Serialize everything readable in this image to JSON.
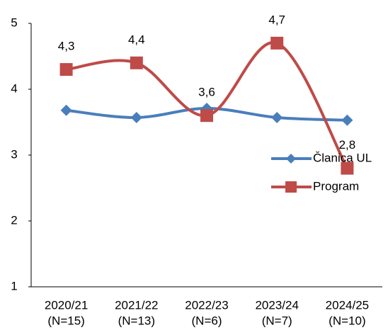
{
  "chart_data": {
    "type": "line",
    "categories": [
      [
        "2020/21",
        "(N=15)"
      ],
      [
        "2021/22",
        "(N=13)"
      ],
      [
        "2022/23",
        "(N=6)"
      ],
      [
        "2023/24",
        "(N=7)"
      ],
      [
        "2024/25",
        "(N=10)"
      ]
    ],
    "series": [
      {
        "name": "Članica UL",
        "color": "#4a7ebb",
        "marker": "diamond",
        "values": [
          3.68,
          3.57,
          3.71,
          3.57,
          3.53
        ]
      },
      {
        "name": "Program",
        "color": "#be4b48",
        "marker": "square",
        "values": [
          4.3,
          4.4,
          3.6,
          4.7,
          2.8
        ],
        "value_labels": [
          "4,3",
          "4,4",
          "3,6",
          "4,7",
          "2,8"
        ]
      }
    ],
    "ylim": [
      1,
      5
    ],
    "yticks": [
      1,
      2,
      3,
      4,
      5
    ],
    "grid": false,
    "smooth": true,
    "legend": "right"
  }
}
